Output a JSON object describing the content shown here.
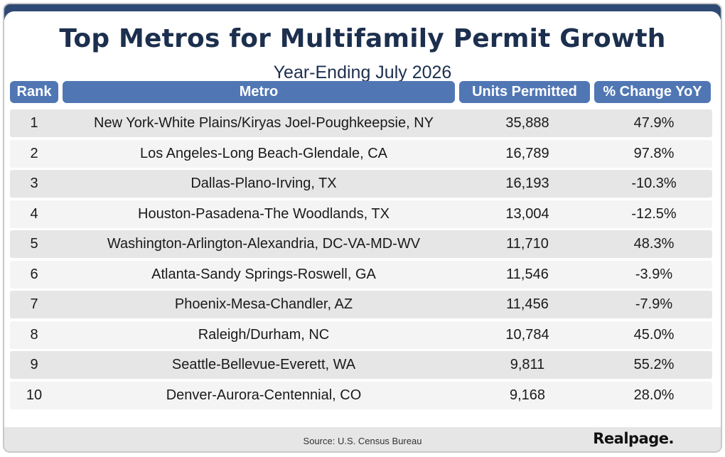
{
  "header": {
    "title": "Top Metros for Multifamily Permit Growth",
    "subtitle": "Year-Ending July 2026"
  },
  "chart_data": {
    "type": "table",
    "columns": [
      "Rank",
      "Metro",
      "Units Permitted",
      "% Change YoY"
    ],
    "rows": [
      [
        "1",
        "New York-White Plains/Kiryas Joel-Poughkeepsie, NY",
        "35,888",
        "47.9%"
      ],
      [
        "2",
        "Los Angeles-Long Beach-Glendale, CA",
        "16,789",
        "97.8%"
      ],
      [
        "3",
        "Dallas-Plano-Irving, TX",
        "16,193",
        "-10.3%"
      ],
      [
        "4",
        "Houston-Pasadena-The Woodlands, TX",
        "13,004",
        "-12.5%"
      ],
      [
        "5",
        "Washington-Arlington-Alexandria, DC-VA-MD-WV",
        "11,710",
        "48.3%"
      ],
      [
        "6",
        "Atlanta-Sandy Springs-Roswell, GA",
        "11,546",
        "-3.9%"
      ],
      [
        "7",
        "Phoenix-Mesa-Chandler, AZ",
        "11,456",
        "-7.9%"
      ],
      [
        "8",
        "Raleigh/Durham, NC",
        "10,784",
        "45.0%"
      ],
      [
        "9",
        "Seattle-Bellevue-Everett, WA",
        "9,811",
        "55.2%"
      ],
      [
        "10",
        "Denver-Aurora-Centennial, CO",
        "9,168",
        "28.0%"
      ]
    ],
    "title": "Top Metros for Multifamily Permit Growth",
    "subtitle": "Year-Ending July 2026"
  },
  "footer": {
    "source": "Source: U.S. Census Bureau",
    "logo": "Realpage."
  },
  "colors": {
    "header_bg": "#5077b4",
    "title": "#1c2f4e",
    "row_odd": "#e6e6e6",
    "row_even": "#f4f4f4"
  }
}
